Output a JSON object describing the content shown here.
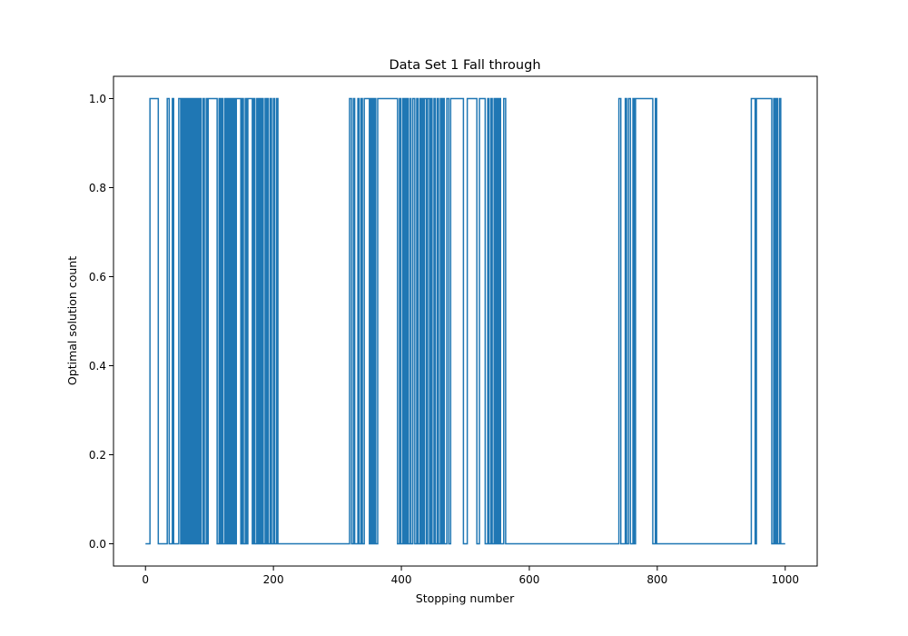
{
  "chart_data": {
    "type": "line",
    "drawstyle": "step",
    "title": "Data Set 1 Fall through",
    "xlabel": "Stopping number",
    "ylabel": "Optimal solution count",
    "xlim": [
      -50,
      1050
    ],
    "ylim": [
      -0.05,
      1.05
    ],
    "xticks": [
      0,
      200,
      400,
      600,
      800,
      1000
    ],
    "yticks": [
      0.0,
      0.2,
      0.4,
      0.6,
      0.8,
      1.0
    ],
    "xtick_labels": [
      "0",
      "200",
      "400",
      "600",
      "800",
      "1000"
    ],
    "ytick_labels": [
      "0.0",
      "0.2",
      "0.4",
      "0.6",
      "0.8",
      "1.0"
    ],
    "grid": false,
    "line_color": "#1f77b4",
    "series": [
      {
        "name": "",
        "x_range": [
          0,
          1000
        ],
        "baseline": 0,
        "value_1_intervals": [
          [
            7,
            20
          ],
          [
            34,
            37
          ],
          [
            42,
            44
          ],
          [
            52,
            55
          ],
          [
            57,
            58
          ],
          [
            60,
            62
          ],
          [
            64,
            66
          ],
          [
            68,
            70
          ],
          [
            72,
            73
          ],
          [
            75,
            77
          ],
          [
            79,
            80
          ],
          [
            82,
            84
          ],
          [
            86,
            87
          ],
          [
            90,
            92
          ],
          [
            95,
            96
          ],
          [
            98,
            112
          ],
          [
            115,
            117
          ],
          [
            119,
            121
          ],
          [
            124,
            126
          ],
          [
            128,
            129
          ],
          [
            131,
            133
          ],
          [
            135,
            137
          ],
          [
            139,
            140
          ],
          [
            142,
            149
          ],
          [
            151,
            153
          ],
          [
            156,
            158
          ],
          [
            160,
            167
          ],
          [
            169,
            171
          ],
          [
            174,
            176
          ],
          [
            178,
            180
          ],
          [
            182,
            184
          ],
          [
            187,
            189
          ],
          [
            191,
            192
          ],
          [
            195,
            197
          ],
          [
            200,
            202
          ],
          [
            205,
            207
          ],
          [
            319,
            322
          ],
          [
            325,
            327
          ],
          [
            332,
            334
          ],
          [
            337,
            339
          ],
          [
            342,
            350
          ],
          [
            352,
            354
          ],
          [
            356,
            357
          ],
          [
            359,
            360
          ],
          [
            363,
            394
          ],
          [
            397,
            399
          ],
          [
            402,
            404
          ],
          [
            406,
            407
          ],
          [
            409,
            411
          ],
          [
            414,
            415
          ],
          [
            418,
            421
          ],
          [
            424,
            426
          ],
          [
            429,
            431
          ],
          [
            433,
            434
          ],
          [
            436,
            439
          ],
          [
            441,
            444
          ],
          [
            446,
            448
          ],
          [
            451,
            453
          ],
          [
            456,
            458
          ],
          [
            461,
            463
          ],
          [
            465,
            467
          ],
          [
            471,
            474
          ],
          [
            477,
            497
          ],
          [
            503,
            518
          ],
          [
            522,
            531
          ],
          [
            535,
            537
          ],
          [
            540,
            542
          ],
          [
            545,
            547
          ],
          [
            549,
            551
          ],
          [
            553,
            555
          ],
          [
            560,
            563
          ],
          [
            740,
            743
          ],
          [
            750,
            752
          ],
          [
            755,
            758
          ],
          [
            762,
            764
          ],
          [
            766,
            793
          ],
          [
            797,
            799
          ],
          [
            947,
            953
          ],
          [
            955,
            979
          ],
          [
            982,
            984
          ],
          [
            986,
            988
          ],
          [
            991,
            993
          ]
        ]
      }
    ]
  }
}
